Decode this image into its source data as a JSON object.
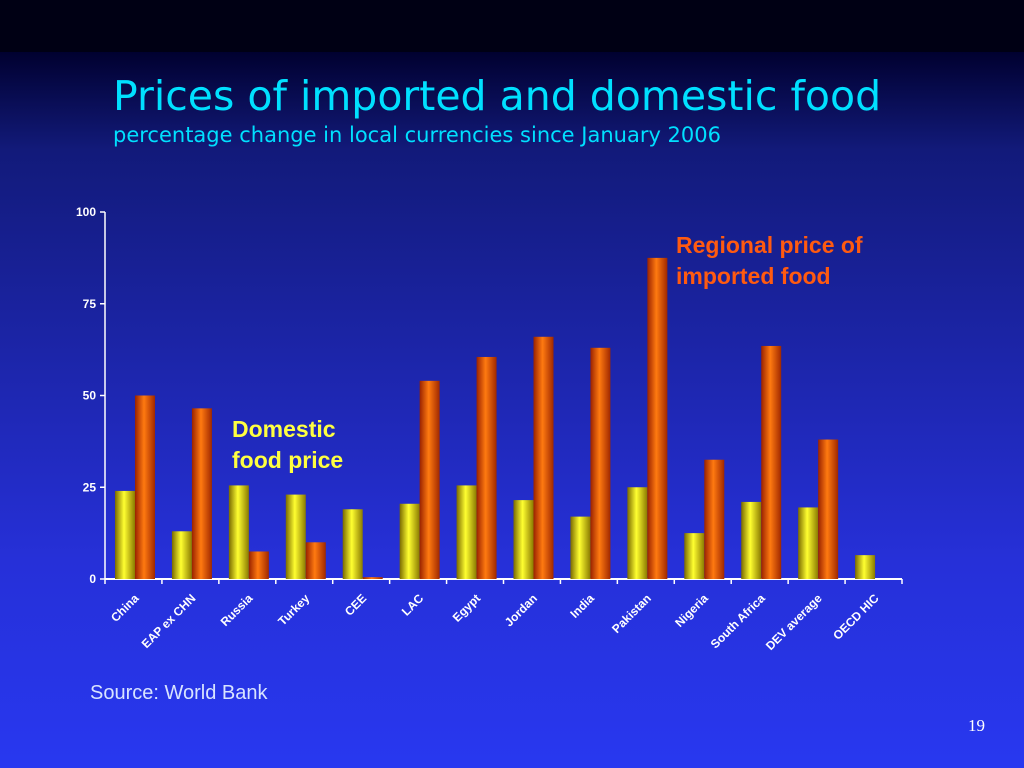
{
  "slide": {
    "title": "Prices of imported and domestic food",
    "subtitle": "percentage change in local currencies since January 2006",
    "source": "Source: World Bank",
    "page_number": "19"
  },
  "colors": {
    "domestic": "#f2f200",
    "imported": "#f06000",
    "imported_label": "#ff5a10",
    "domestic_label": "#ffff40",
    "axis": "#ffffff",
    "title": "#00e0ff"
  },
  "chart_data": {
    "type": "bar",
    "categories": [
      "China",
      "EAP ex CHN",
      "Russia",
      "Turkey",
      "CEE",
      "LAC",
      "Egypt",
      "Jordan",
      "India",
      "Pakistan",
      "Nigeria",
      "South Africa",
      "DEV average",
      "OECD HIC"
    ],
    "series": [
      {
        "name": "Domestic food price",
        "values": [
          24,
          13,
          25.5,
          23,
          19,
          20.5,
          25.5,
          21.5,
          17,
          25,
          12.5,
          21,
          19.5,
          6.5
        ]
      },
      {
        "name": "Regional price of imported food",
        "values": [
          50,
          46.5,
          7.5,
          10,
          0.5,
          54,
          60.5,
          66,
          63,
          87.5,
          32.5,
          63.5,
          38,
          null
        ]
      }
    ],
    "ylim": [
      0,
      100
    ],
    "yticks": [
      0,
      25,
      50,
      75,
      100
    ],
    "annotations": [
      {
        "text": "Regional price of imported food",
        "series": "Regional price of imported food"
      },
      {
        "text": "Domestic food price",
        "series": "Domestic food price"
      }
    ],
    "grid": false,
    "legend": "none"
  }
}
